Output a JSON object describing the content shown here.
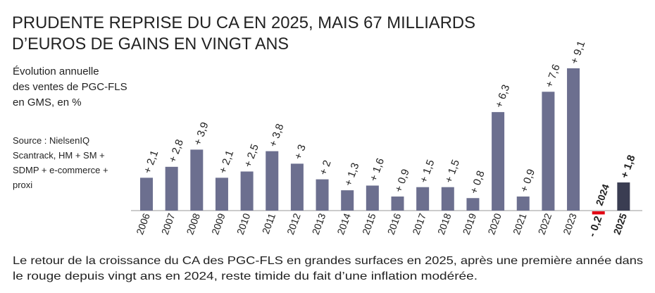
{
  "chart_data": {
    "type": "bar",
    "title": [
      "PRUDENTE REPRISE DU CA EN 2025, MAIS 67 MILLIARDS",
      "D’EUROS DE GAINS EN VINGT ANS"
    ],
    "subtitle": [
      "Évolution annuelle",
      "des ventes de PGC-FLS",
      "en GMS, en %"
    ],
    "source": [
      "Source : NielsenIQ",
      "Scantrack, HM + SM +",
      "SDMP + e-commerce +",
      "proxi"
    ],
    "caption": [
      "Le retour de la croissance du CA des PGC-FLS en grandes surfaces en 2025, après une première année dans",
      "le rouge depuis vingt ans en 2024, reste timide du fait d’une inflation modérée."
    ],
    "categories": [
      "2006",
      "2007",
      "2008",
      "2009",
      "2010",
      "2011",
      "2012",
      "2013",
      "2014",
      "2015",
      "2016",
      "2017",
      "2018",
      "2019",
      "2020",
      "2021",
      "2022",
      "2023",
      "2024",
      "2025"
    ],
    "values": [
      2.1,
      2.8,
      3.9,
      2.1,
      2.5,
      3.8,
      3,
      2,
      1.3,
      1.6,
      0.9,
      1.5,
      1.5,
      0.8,
      6.3,
      0.9,
      7.6,
      9.1,
      -0.2,
      1.8
    ],
    "value_labels": [
      "+ 2,1",
      "+ 2,8",
      "+ 3,9",
      "+ 2,1",
      "+ 2,5",
      "+ 3,8",
      "+ 3",
      "+ 2",
      "+ 1,3",
      "+ 1,6",
      "+ 0,9",
      "+ 1,5",
      "+ 1,5",
      "+ 0,8",
      "+ 6,3",
      "+ 0,9",
      "+ 7,6",
      "+ 9,1",
      "- 0,2",
      "+ 1,8"
    ],
    "color": "#6c6f8f",
    "last_color": "#3a3d52",
    "negative_color": "#e30613"
  }
}
